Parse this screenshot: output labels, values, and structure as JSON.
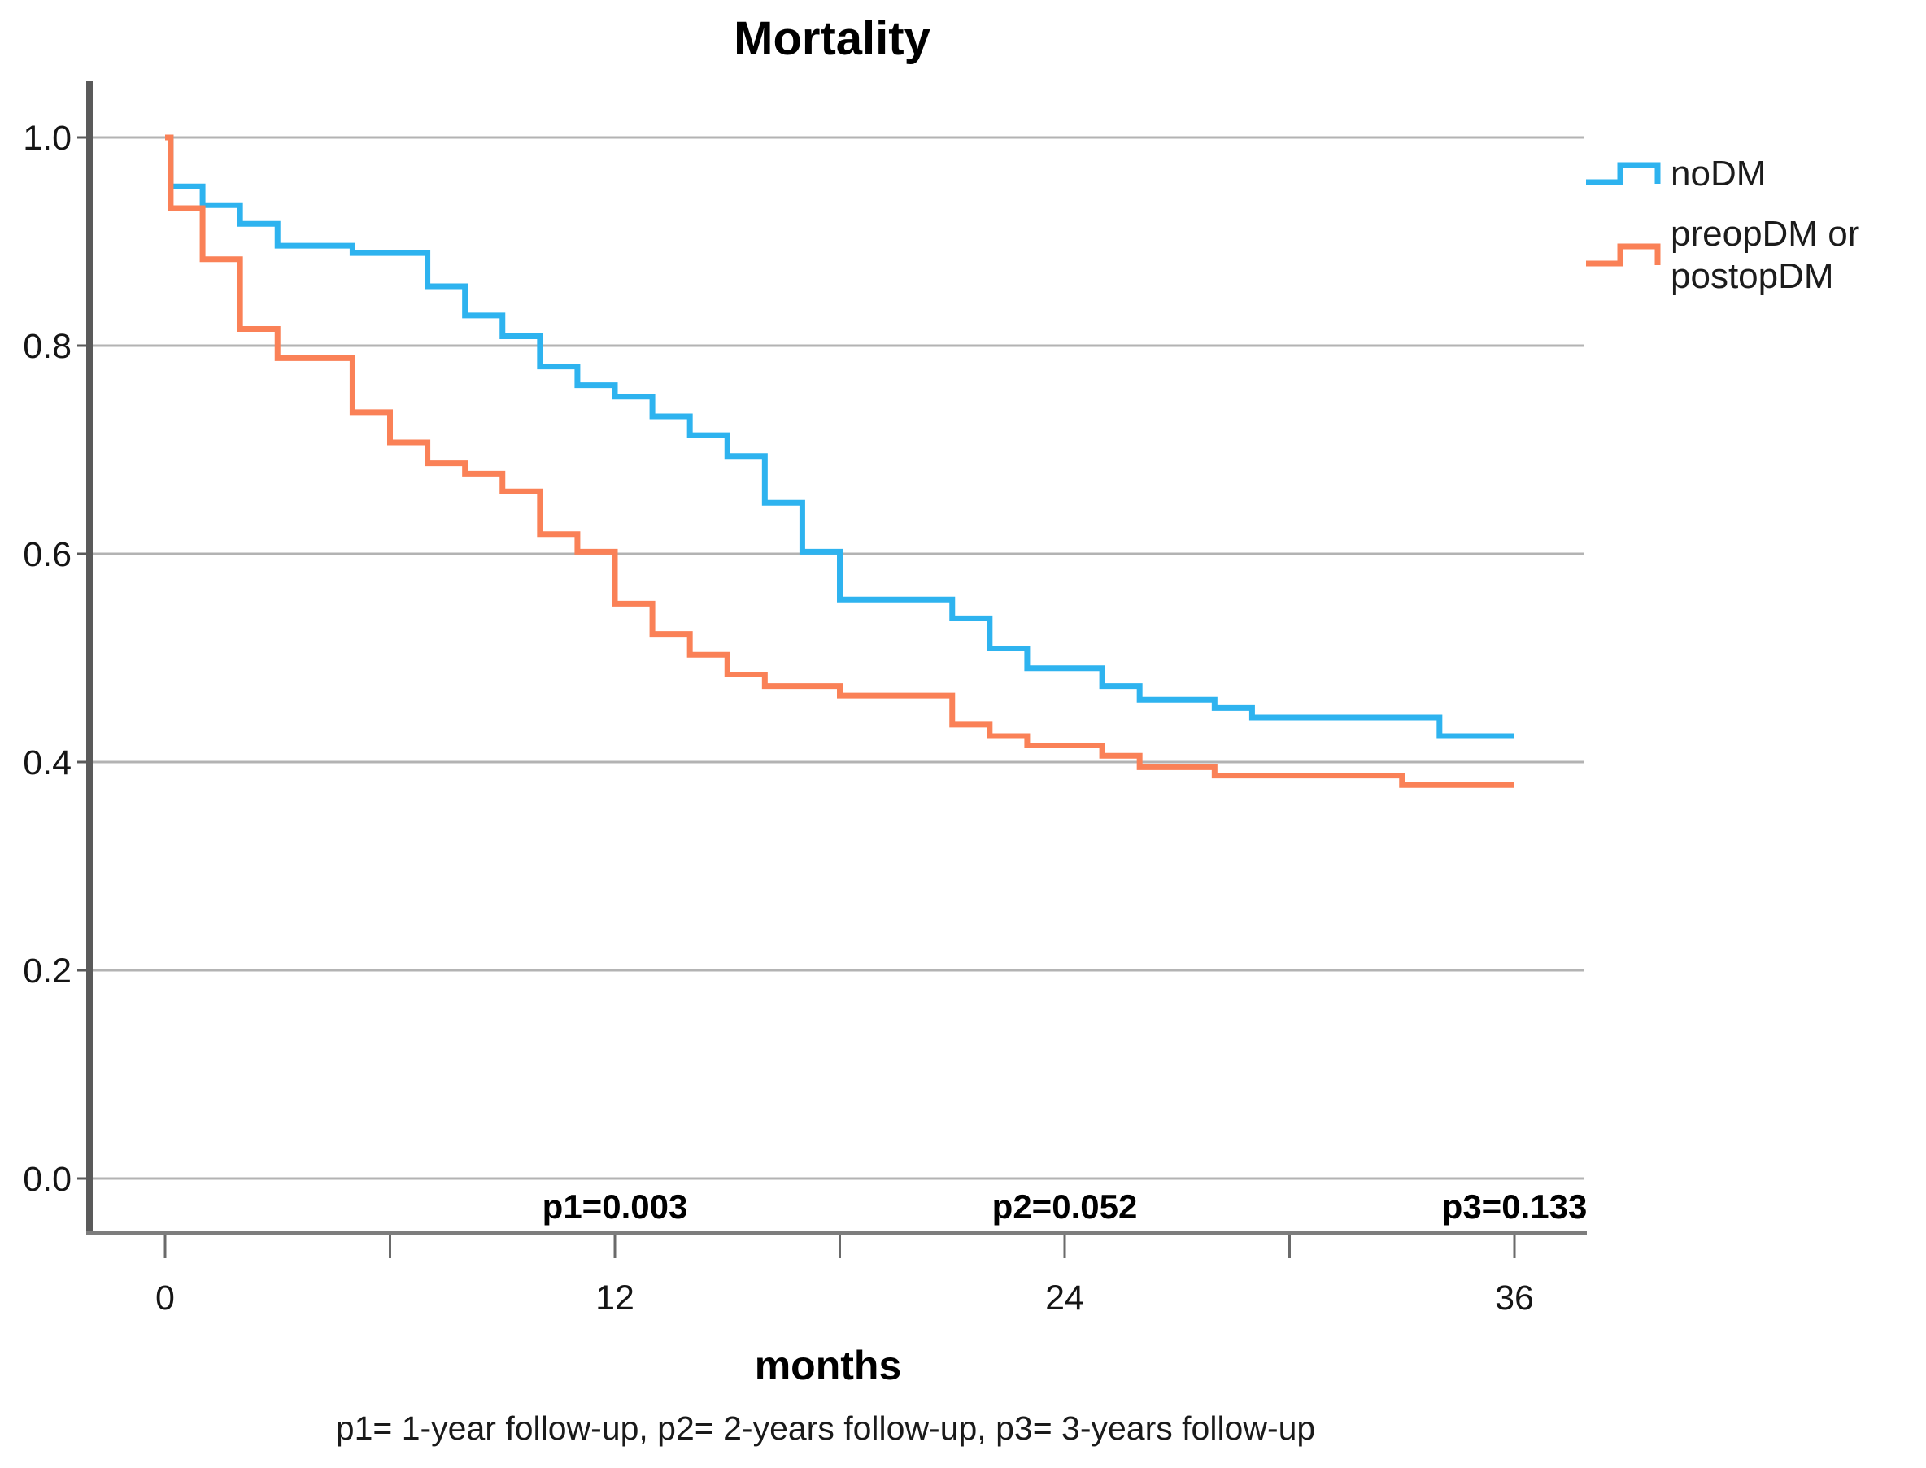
{
  "chart_data": {
    "type": "line",
    "subtype": "kaplan-meier-step-survival",
    "title": "Mortality",
    "xlabel": "months",
    "footnote": "p1= 1-year follow-up, p2= 2-years follow-up, p3= 3-years follow-up",
    "xlim": [
      0,
      36
    ],
    "ylim": [
      0.0,
      1.0
    ],
    "grid": "horizontal",
    "legend_position": "right-outside",
    "x_ticks": [
      0,
      6,
      12,
      18,
      24,
      30,
      36
    ],
    "x_labeled_ticks": [
      {
        "value": 0,
        "label": "0"
      },
      {
        "value": 12,
        "label": "12"
      },
      {
        "value": 24,
        "label": "24"
      },
      {
        "value": 36,
        "label": "36"
      }
    ],
    "y_ticks": [
      {
        "value": 1.0,
        "label": "1.0"
      },
      {
        "value": 0.8,
        "label": "0.8"
      },
      {
        "value": 0.6,
        "label": "0.6"
      },
      {
        "value": 0.4,
        "label": "0.4"
      },
      {
        "value": 0.2,
        "label": "0.2"
      },
      {
        "value": 0.0,
        "label": "0.0"
      }
    ],
    "annotations": [
      {
        "text": "p1=0.003",
        "x": 12
      },
      {
        "text": "p2=0.052",
        "x": 24
      },
      {
        "text": "p3=0.133",
        "x": 36
      }
    ],
    "series": [
      {
        "name": "noDM",
        "color": "#2eb3ef",
        "end_month": 36,
        "steps": [
          [
            0,
            1.0
          ],
          [
            0.15,
            0.953
          ],
          [
            1,
            0.935
          ],
          [
            2,
            0.917
          ],
          [
            3,
            0.896
          ],
          [
            5,
            0.889
          ],
          [
            7,
            0.857
          ],
          [
            8,
            0.829
          ],
          [
            9,
            0.809
          ],
          [
            10,
            0.78
          ],
          [
            11,
            0.762
          ],
          [
            12,
            0.751
          ],
          [
            13,
            0.732
          ],
          [
            14,
            0.714
          ],
          [
            15,
            0.694
          ],
          [
            16,
            0.649
          ],
          [
            17,
            0.602
          ],
          [
            18,
            0.556
          ],
          [
            21,
            0.538
          ],
          [
            22,
            0.509
          ],
          [
            23,
            0.49
          ],
          [
            25,
            0.473
          ],
          [
            26,
            0.46
          ],
          [
            28,
            0.452
          ],
          [
            29,
            0.443
          ],
          [
            34,
            0.425
          ]
        ]
      },
      {
        "name": "preopDM or postopDM",
        "color": "#fa8157",
        "end_month": 36,
        "steps": [
          [
            0,
            1.0
          ],
          [
            0.15,
            0.932
          ],
          [
            1,
            0.883
          ],
          [
            2,
            0.816
          ],
          [
            3,
            0.788
          ],
          [
            5,
            0.736
          ],
          [
            6,
            0.707
          ],
          [
            7,
            0.687
          ],
          [
            8,
            0.677
          ],
          [
            9,
            0.66
          ],
          [
            10,
            0.619
          ],
          [
            11,
            0.602
          ],
          [
            12,
            0.552
          ],
          [
            13,
            0.523
          ],
          [
            14,
            0.503
          ],
          [
            15,
            0.484
          ],
          [
            16,
            0.473
          ],
          [
            18,
            0.464
          ],
          [
            21,
            0.436
          ],
          [
            22,
            0.425
          ],
          [
            23,
            0.416
          ],
          [
            25,
            0.406
          ],
          [
            26,
            0.395
          ],
          [
            28,
            0.387
          ],
          [
            33,
            0.378
          ]
        ]
      }
    ],
    "colors": {
      "grid": "#b3b3b3",
      "y_axis": "#5a5a5a",
      "x_axis": "#7d7d7d",
      "tick": "#6a6a6a",
      "text": "#151515"
    }
  }
}
